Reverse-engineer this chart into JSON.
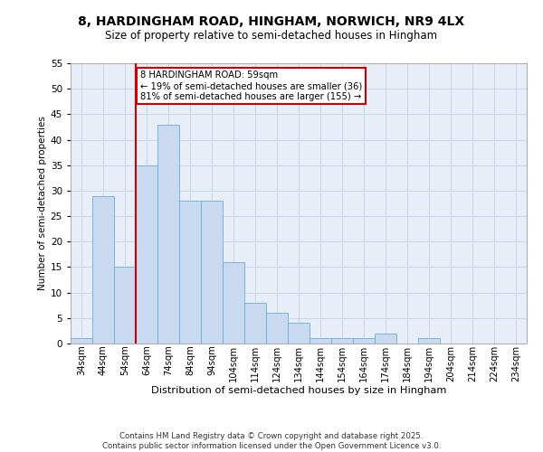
{
  "title1": "8, HARDINGHAM ROAD, HINGHAM, NORWICH, NR9 4LX",
  "title2": "Size of property relative to semi-detached houses in Hingham",
  "xlabel": "Distribution of semi-detached houses by size in Hingham",
  "ylabel": "Number of semi-detached properties",
  "categories": [
    "34sqm",
    "44sqm",
    "54sqm",
    "64sqm",
    "74sqm",
    "84sqm",
    "94sqm",
    "104sqm",
    "114sqm",
    "124sqm",
    "134sqm",
    "144sqm",
    "154sqm",
    "164sqm",
    "174sqm",
    "184sqm",
    "194sqm",
    "204sqm",
    "214sqm",
    "224sqm",
    "234sqm"
  ],
  "values": [
    1,
    29,
    15,
    35,
    43,
    28,
    28,
    16,
    8,
    6,
    4,
    1,
    1,
    1,
    2,
    0,
    1,
    0,
    0,
    0,
    0
  ],
  "bar_color": "#c9d9f0",
  "bar_edgecolor": "#6baed6",
  "grid_color": "#c8d4e8",
  "background_color": "#e8eef8",
  "property_bin_index": 2,
  "redline_label": "8 HARDINGHAM ROAD: 59sqm",
  "smaller_pct": 19,
  "smaller_count": 36,
  "larger_pct": 81,
  "larger_count": 155,
  "ylim": [
    0,
    55
  ],
  "yticks": [
    0,
    5,
    10,
    15,
    20,
    25,
    30,
    35,
    40,
    45,
    50,
    55
  ],
  "footer": "Contains HM Land Registry data © Crown copyright and database right 2025.\nContains public sector information licensed under the Open Government Licence v3.0.",
  "annotation_box_edgecolor": "#cc0000",
  "redline_color": "#cc0000"
}
